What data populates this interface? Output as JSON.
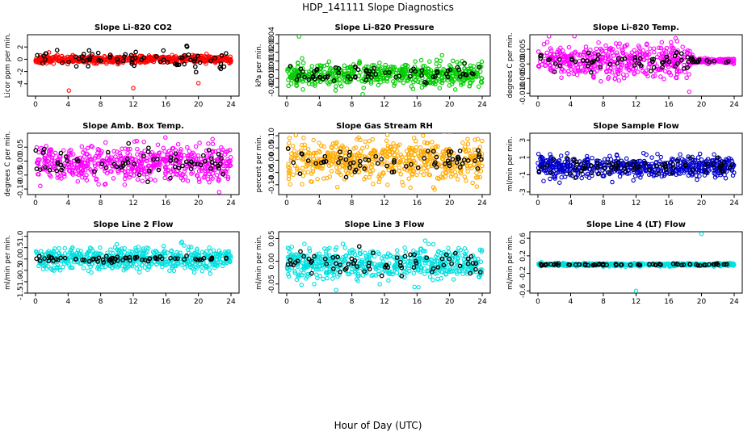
{
  "figure": {
    "title": "HDP_141111  Slope Diagnostics",
    "xlabel": "Hour of Day (UTC)"
  },
  "chart_data": [
    {
      "type": "scatter",
      "title": "Slope Li-820 CO2",
      "ylabel": "Licor ppm per min.",
      "xlim": [
        0,
        24
      ],
      "xticks": [
        "0",
        "4",
        "8",
        "12",
        "16",
        "20",
        "24"
      ],
      "ylim": [
        -6,
        4
      ],
      "yticks": [
        -4,
        -2,
        0,
        2
      ],
      "ytick_labels": [
        "-4",
        "-2",
        "0",
        "2"
      ],
      "color": "#ff0000",
      "spread": 0.45,
      "black_spread": 1.6,
      "seed": 11,
      "outliers": [
        {
          "x": 4.1,
          "y": -5.1
        },
        {
          "x": 12.0,
          "y": -4.7
        },
        {
          "x": 20.0,
          "y": -3.9
        }
      ]
    },
    {
      "type": "scatter",
      "title": "Slope Li-820 Pressure",
      "ylabel": "kPa per min.",
      "xlim": [
        0,
        24
      ],
      "xticks": [
        "0",
        "4",
        "8",
        "12",
        "16",
        "20",
        "24"
      ],
      "ylim": [
        -0.03,
        0.04
      ],
      "yticks": [
        -0.02,
        -0.01,
        0.0,
        0.01,
        0.02,
        0.03,
        0.04
      ],
      "ytick_labels": [
        "-0.02",
        "-0.01",
        "0.00",
        "0.01",
        "0.02",
        "0.03",
        "0.04"
      ],
      "color": "#00cc00",
      "spread": 0.009,
      "center": -0.005,
      "black_spread": 0.01,
      "seed": 23,
      "outliers": [
        {
          "x": 1.5,
          "y": 0.038
        }
      ]
    },
    {
      "type": "scatter",
      "title": "Slope Li-820 Temp.",
      "ylabel": "degrees C per min.",
      "xlim": [
        0,
        24
      ],
      "xticks": [
        "0",
        "4",
        "8",
        "12",
        "16",
        "20",
        "24"
      ],
      "ylim": [
        -0.011,
        0.01
      ],
      "yticks": [
        -0.01,
        -0.005,
        0.0,
        0.005
      ],
      "ytick_labels": [
        "-0.010",
        "-0.005",
        "0.000",
        "0.005"
      ],
      "color": "#ff00ff",
      "spread": 0.004,
      "center": 0.001,
      "black_spread": 0.003,
      "seed": 37,
      "flat_after": 19,
      "outliers": [
        {
          "x": 18.5,
          "y": -0.0095
        }
      ]
    },
    {
      "type": "scatter",
      "title": "Slope Amb. Box Temp.",
      "ylabel": "degrees C per min.",
      "xlim": [
        0,
        24
      ],
      "xticks": [
        "0",
        "4",
        "8",
        "12",
        "16",
        "20",
        "24"
      ],
      "ylim": [
        -0.12,
        0.1
      ],
      "yticks": [
        -0.1,
        -0.05,
        0.0,
        0.05
      ],
      "ytick_labels": [
        "-0.10",
        "-0.05",
        "0.00",
        "0.05"
      ],
      "color": "#ff00ff",
      "spread": 0.045,
      "center": -0.01,
      "black_spread": 0.04,
      "seed": 41,
      "outliers": []
    },
    {
      "type": "scatter",
      "title": "Slope Gas Stream RH",
      "ylabel": "percent per min.",
      "xlim": [
        0,
        24
      ],
      "xticks": [
        "0",
        "4",
        "8",
        "12",
        "16",
        "20",
        "24"
      ],
      "ylim": [
        -0.14,
        0.11
      ],
      "yticks": [
        -0.1,
        -0.05,
        0.0,
        0.05,
        0.1
      ],
      "ytick_labels": [
        "-0.10",
        "-0.05",
        "0.00",
        "0.05",
        "0.10"
      ],
      "color": "#ffaa00",
      "spread": 0.06,
      "center": 0.0,
      "black_spread": 0.05,
      "seed": 53,
      "outliers": []
    },
    {
      "type": "scatter",
      "title": "Slope Sample Flow",
      "ylabel": "ml/min per min.",
      "xlim": [
        0,
        24
      ],
      "xticks": [
        "0",
        "4",
        "8",
        "12",
        "16",
        "20",
        "24"
      ],
      "ylim": [
        -3.3,
        3.8
      ],
      "yticks": [
        -3,
        -1,
        1,
        3
      ],
      "ytick_labels": [
        "-3",
        "-1",
        "1",
        "3"
      ],
      "color": "#0000cc",
      "spread": 0.8,
      "center": -0.1,
      "black_spread": 0.8,
      "seed": 67,
      "outliers": []
    },
    {
      "type": "scatter",
      "title": "Slope Line 2 Flow",
      "ylabel": "ml/min per min.",
      "xlim": [
        0,
        24
      ],
      "xticks": [
        "0",
        "4",
        "8",
        "12",
        "16",
        "20",
        "24"
      ],
      "ylim": [
        -1.5,
        1.2
      ],
      "yticks": [
        -1.5,
        -1.0,
        -0.5,
        0.0,
        0.5,
        1.0
      ],
      "ytick_labels": [
        "-1.5",
        "-1.0",
        "-0.5",
        "0.0",
        "0.5",
        "1.0"
      ],
      "color": "#00e0e0",
      "spread": 0.35,
      "center": 0.0,
      "black_spread": 0.1,
      "seed": 79,
      "outliers": []
    },
    {
      "type": "scatter",
      "title": "Slope Line 3 Flow",
      "ylabel": "ml/min per min.",
      "xlim": [
        0,
        24
      ],
      "xticks": [
        "0",
        "4",
        "8",
        "12",
        "16",
        "20",
        "24"
      ],
      "ylim": [
        -0.07,
        0.065
      ],
      "yticks": [
        -0.05,
        0.0,
        0.05
      ],
      "ytick_labels": [
        "-0.05",
        "0.00",
        "0.05"
      ],
      "color": "#00e0e0",
      "spread": 0.025,
      "center": -0.005,
      "black_spread": 0.025,
      "seed": 83,
      "outliers": []
    },
    {
      "type": "scatter",
      "title": "Slope Line 4 (LT) Flow",
      "ylabel": "ml/min per min.",
      "xlim": [
        0,
        24
      ],
      "xticks": [
        "0",
        "4",
        "8",
        "12",
        "16",
        "20",
        "24"
      ],
      "ylim": [
        -0.65,
        0.75
      ],
      "yticks": [
        -0.6,
        -0.2,
        0.2,
        0.6
      ],
      "ytick_labels": [
        "-0.6",
        "-0.2",
        "0.2",
        "0.6"
      ],
      "color": "#00e0e0",
      "spread": 0.025,
      "center": 0.0,
      "black_spread": 0.02,
      "seed": 97,
      "outliers": [
        {
          "x": 20.0,
          "y": 0.7
        },
        {
          "x": 12.0,
          "y": -0.6
        }
      ]
    }
  ]
}
